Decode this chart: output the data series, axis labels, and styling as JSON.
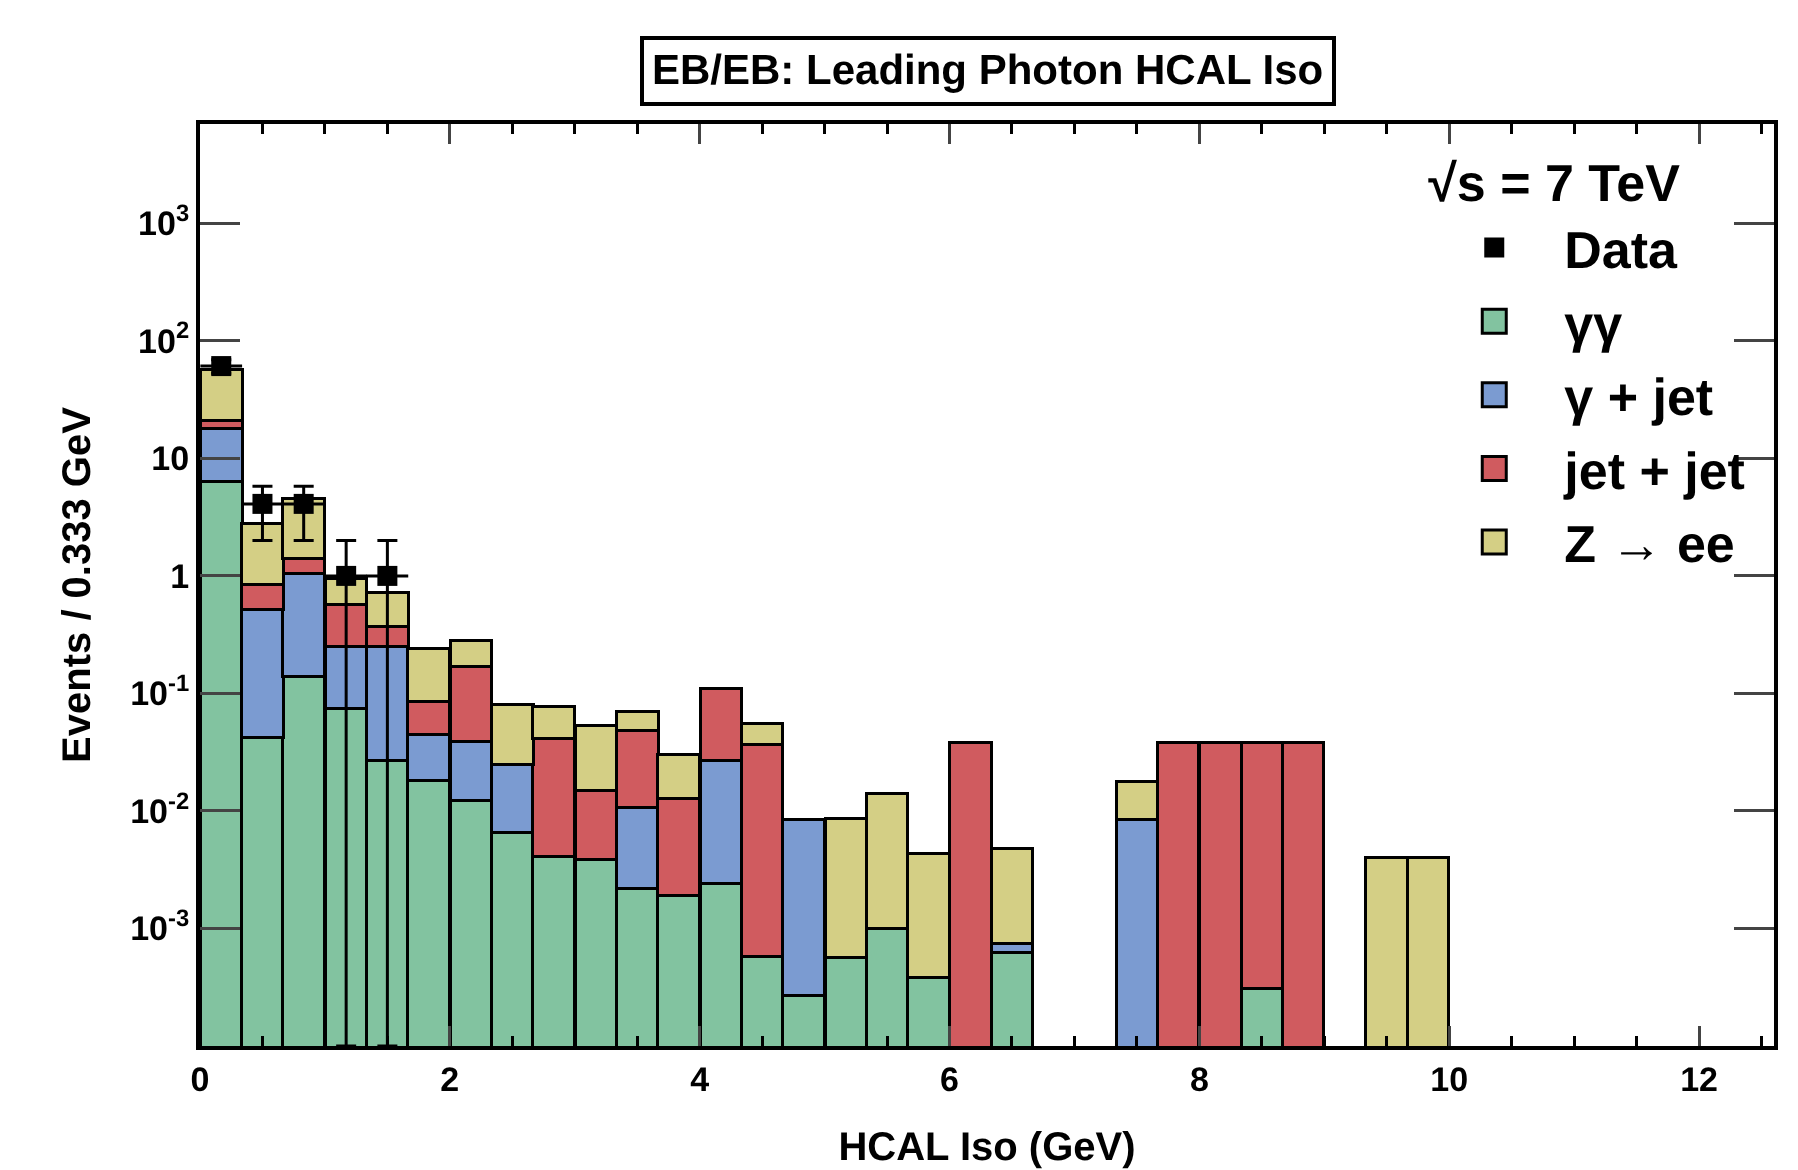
{
  "chart_data": {
    "type": "bar",
    "title": "EB/EB: Leading Photon HCAL Iso",
    "xlabel": "HCAL Iso (GeV)",
    "ylabel": "Events / 0.333 GeV",
    "legend_title": "√s = 7 TeV",
    "x": [
      0.17,
      0.5,
      0.83,
      1.17,
      1.5,
      1.83,
      2.17,
      2.5,
      2.83,
      3.17,
      3.5,
      3.83,
      4.17,
      4.5,
      4.83,
      5.17,
      5.5,
      5.83,
      6.17,
      6.5,
      6.83,
      7.17,
      7.5,
      7.83,
      8.17,
      8.5,
      8.83,
      9.17,
      9.5,
      9.83
    ],
    "stacked": true,
    "log": true,
    "grid": false,
    "legend": "top right",
    "xlim": [
      0,
      12.6
    ],
    "xticks": [
      0,
      2,
      4,
      6,
      8,
      10,
      12
    ],
    "ylim": [
      0.0001,
      7000
    ],
    "yticks": [
      {
        "value": 0.001,
        "label": "10$^{-3}$"
      },
      {
        "value": 0.01,
        "label": "10$^{-2}$"
      },
      {
        "value": 0.1,
        "label": "10$^{-1}$"
      },
      1,
      10,
      {
        "value": 100,
        "label": "10$^{2}$"
      },
      {
        "value": 1000,
        "label": "10$^{3}$"
      }
    ],
    "series": [
      {
        "type": "scatter",
        "name": "Data",
        "color": "#000000",
        "marker": "square",
        "x": [
          0.17,
          0.5,
          0.83,
          1.17,
          1.5
        ],
        "values": [
          61,
          4.1,
          4.1,
          1.0,
          1.0
        ],
        "errors": [
          8,
          [
            2.0,
            5.8
          ],
          [
            2.0,
            5.8
          ],
          [
            0.0001,
            2.0
          ],
          [
            0.0001,
            2.0
          ]
        ],
        "xerrors": [
          0.167,
          0.167,
          0.167,
          0.167,
          0.167
        ]
      },
      {
        "name": "γγ",
        "color": "#82c3a0",
        "values": [
          6.4,
          0.042,
          0.14,
          0.075,
          0.027,
          0.018,
          0.0123,
          0.0065,
          0.0041,
          0.0039,
          0.0022,
          0.0019,
          0.0024,
          0.00058,
          0.00027,
          0.00057,
          0.001,
          0.00038,
          null,
          0.00062,
          null,
          null,
          null,
          null,
          null,
          0.00031,
          null,
          null,
          null,
          null
        ]
      },
      {
        "name": "γ + jet",
        "color": "#7b9bd1",
        "values": [
          11.6,
          0.478,
          0.91,
          0.175,
          0.223,
          0.027,
          0.0267,
          0.0185,
          null,
          null,
          0.0086,
          null,
          0.0246,
          null,
          0.0082,
          null,
          null,
          null,
          null,
          0.00013,
          null,
          null,
          0.0085,
          null,
          null,
          null,
          null,
          null,
          null,
          null
        ]
      },
      {
        "name": "jet + jet",
        "color": "#d05b5f",
        "values": [
          3,
          0.32,
          0.35,
          0.32,
          0.12,
          0.04,
          0.131,
          null,
          0.0369,
          0.0111,
          0.0372,
          0.0109,
          0.083,
          0.0364,
          null,
          null,
          null,
          null,
          0.038,
          null,
          null,
          null,
          null,
          0.038,
          0.038,
          0.0377,
          0.038,
          null,
          null,
          null
        ]
      },
      {
        "name": "Z → ee",
        "color": "#d4cf85",
        "values": [
          36,
          1.96,
          3.2,
          0.38,
          0.35,
          0.155,
          0.11,
          0.055,
          0.037,
          0.038,
          0.022,
          0.0172,
          null,
          0.018,
          null,
          0.0081,
          0.013,
          0.004,
          null,
          0.004,
          null,
          null,
          0.0092,
          null,
          null,
          null,
          null,
          null,
          0.004,
          0.004
        ]
      }
    ]
  }
}
